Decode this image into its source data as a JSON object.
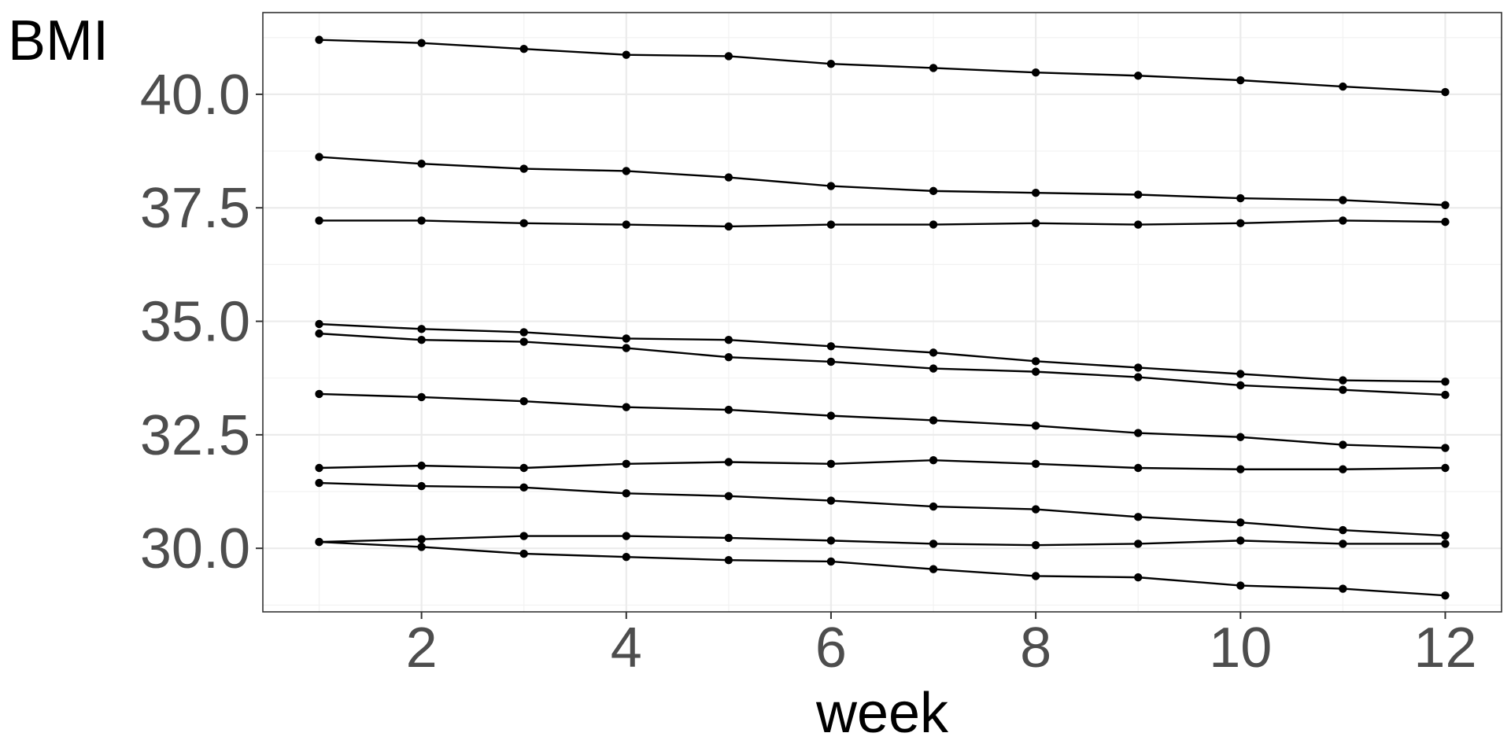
{
  "chart_data": {
    "type": "line",
    "title": "",
    "xlabel": "week",
    "ylabel": "BMI",
    "x": [
      1,
      2,
      3,
      4,
      5,
      6,
      7,
      8,
      9,
      10,
      11,
      12
    ],
    "xlim": [
      0.45,
      12.55
    ],
    "ylim": [
      28.6,
      41.8
    ],
    "x_ticks": [
      2,
      4,
      6,
      8,
      10,
      12
    ],
    "x_tick_labels": [
      "2",
      "4",
      "6",
      "8",
      "10",
      "12"
    ],
    "y_ticks": [
      30.0,
      32.5,
      35.0,
      37.5,
      40.0
    ],
    "y_tick_labels": [
      "30.0",
      "32.5",
      "35.0",
      "37.5",
      "40.0"
    ],
    "grid": true,
    "legend": "none",
    "colors": {
      "line": "#000000",
      "point": "#000000",
      "grid_major": "#ebebeb",
      "grid_minor": "#f2f2f2",
      "panel_border": "#333333",
      "tick_label": "#4d4d4d"
    },
    "series": [
      {
        "values": [
          41.2,
          41.13,
          41.0,
          40.87,
          40.84,
          40.67,
          40.58,
          40.48,
          40.41,
          40.31,
          40.17,
          40.05
        ]
      },
      {
        "values": [
          38.62,
          38.47,
          38.36,
          38.31,
          38.17,
          37.98,
          37.87,
          37.83,
          37.79,
          37.71,
          37.67,
          37.56
        ]
      },
      {
        "values": [
          37.22,
          37.22,
          37.16,
          37.13,
          37.09,
          37.13,
          37.13,
          37.16,
          37.13,
          37.16,
          37.22,
          37.19
        ]
      },
      {
        "values": [
          34.94,
          34.83,
          34.76,
          34.62,
          34.59,
          34.45,
          34.31,
          34.12,
          33.98,
          33.84,
          33.7,
          33.67
        ]
      },
      {
        "values": [
          34.73,
          34.59,
          34.55,
          34.41,
          34.21,
          34.11,
          33.96,
          33.89,
          33.77,
          33.59,
          33.49,
          33.38
        ]
      },
      {
        "values": [
          33.4,
          33.33,
          33.24,
          33.11,
          33.05,
          32.92,
          32.82,
          32.7,
          32.54,
          32.45,
          32.28,
          32.21
        ]
      },
      {
        "values": [
          31.77,
          31.82,
          31.77,
          31.86,
          31.9,
          31.86,
          31.94,
          31.86,
          31.77,
          31.74,
          31.74,
          31.77
        ]
      },
      {
        "values": [
          31.44,
          31.37,
          31.34,
          31.21,
          31.15,
          31.05,
          30.92,
          30.86,
          30.69,
          30.57,
          30.4,
          30.28
        ]
      },
      {
        "values": [
          30.14,
          30.2,
          30.27,
          30.27,
          30.23,
          30.17,
          30.1,
          30.07,
          30.1,
          30.17,
          30.1,
          30.1
        ]
      },
      {
        "values": [
          30.14,
          30.03,
          29.88,
          29.81,
          29.74,
          29.71,
          29.54,
          29.39,
          29.36,
          29.18,
          29.11,
          28.96
        ]
      }
    ]
  }
}
